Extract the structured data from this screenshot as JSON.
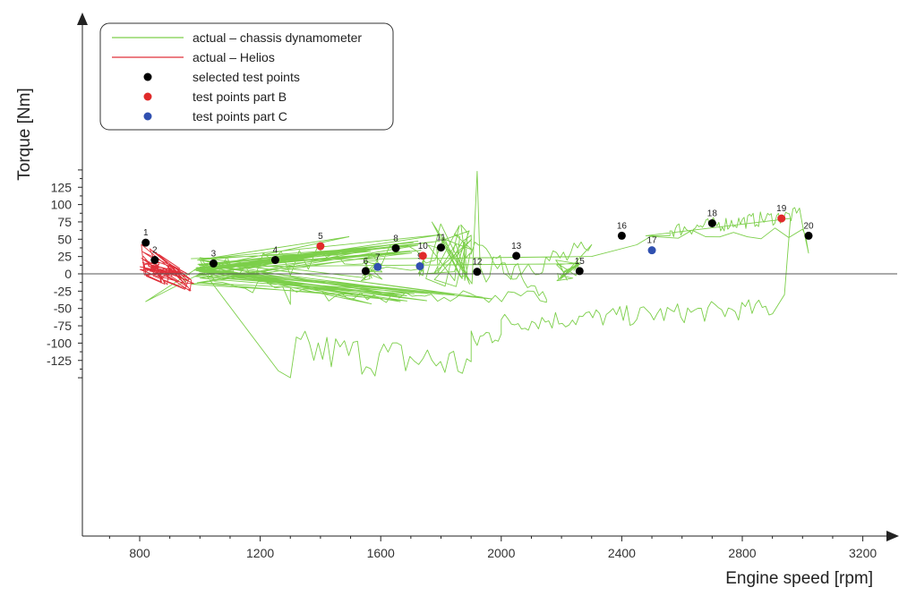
{
  "chart_data": {
    "type": "scatter",
    "xlabel": "Engine speed [rpm]",
    "ylabel": "Torque  [Nm]",
    "xlim": [
      600,
      3300
    ],
    "ylim": [
      -150,
      150
    ],
    "x_ticks": [
      800,
      1200,
      1600,
      2000,
      2400,
      2800,
      3200
    ],
    "y_ticks": [
      -125,
      -100,
      -75,
      -50,
      -25,
      0,
      25,
      50,
      75,
      100,
      125
    ],
    "grid": false,
    "legend_position": "top-left",
    "legend": [
      {
        "label": "actual – chassis dynamometer",
        "kind": "line",
        "color": "#7ccf4a"
      },
      {
        "label": "actual – Helios",
        "kind": "line",
        "color": "#e0303a"
      },
      {
        "label": "selected test points",
        "kind": "dot",
        "color": "#000000"
      },
      {
        "label": "test points part B",
        "kind": "dot",
        "color": "#e02a2a"
      },
      {
        "label": "test points part C",
        "kind": "dot",
        "color": "#3050b0"
      }
    ],
    "test_points": [
      {
        "label": "1",
        "x": 820,
        "y": 45,
        "group": "selected"
      },
      {
        "label": "2",
        "x": 850,
        "y": 20,
        "group": "selected"
      },
      {
        "label": "3",
        "x": 1045,
        "y": 15,
        "group": "selected"
      },
      {
        "label": "4",
        "x": 1250,
        "y": 20,
        "group": "selected"
      },
      {
        "label": "5",
        "x": 1400,
        "y": 40,
        "group": "partB"
      },
      {
        "label": "6",
        "x": 1550,
        "y": 4,
        "group": "selected"
      },
      {
        "label": "7",
        "x": 1590,
        "y": 10,
        "group": "partC"
      },
      {
        "label": "8",
        "x": 1650,
        "y": 37,
        "group": "selected"
      },
      {
        "label": "9",
        "x": 1730,
        "y": 11,
        "group": "partC"
      },
      {
        "label": "10",
        "x": 1740,
        "y": 26,
        "group": "partB"
      },
      {
        "label": "11",
        "x": 1800,
        "y": 38,
        "group": "selected"
      },
      {
        "label": "12",
        "x": 1920,
        "y": 3,
        "group": "selected"
      },
      {
        "label": "13",
        "x": 2050,
        "y": 26,
        "group": "selected"
      },
      {
        "label": "15",
        "x": 2260,
        "y": 4,
        "group": "selected"
      },
      {
        "label": "16",
        "x": 2400,
        "y": 55,
        "group": "selected"
      },
      {
        "label": "17",
        "x": 2500,
        "y": 34,
        "group": "partC"
      },
      {
        "label": "18",
        "x": 2700,
        "y": 73,
        "group": "selected"
      },
      {
        "label": "19",
        "x": 2930,
        "y": 80,
        "group": "partB"
      },
      {
        "label": "20",
        "x": 3020,
        "y": 55,
        "group": "selected"
      }
    ],
    "colors": {
      "selected": "#000000",
      "partB": "#e02a2a",
      "partC": "#3050b0",
      "dyno": "#7ccf4a",
      "helios": "#e0303a"
    }
  }
}
